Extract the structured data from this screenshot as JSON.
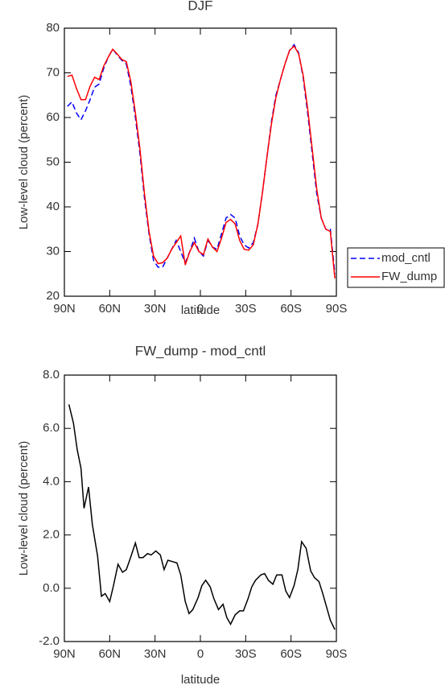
{
  "chart_data": [
    {
      "type": "line",
      "title": "DJF",
      "xlabel": "latitude",
      "ylabel": "Low-level cloud (percent)",
      "x": [
        88,
        85,
        82,
        79,
        76,
        73,
        70,
        67,
        64,
        61,
        58,
        55,
        52,
        49,
        46,
        43,
        40,
        37,
        34,
        31,
        28,
        25,
        22,
        19,
        16,
        13,
        10,
        7,
        4,
        1,
        -2,
        -5,
        -8,
        -11,
        -14,
        -17,
        -20,
        -23,
        -26,
        -29,
        -32,
        -35,
        -38,
        -41,
        -44,
        -47,
        -50,
        -53,
        -56,
        -59,
        -62,
        -65,
        -68,
        -71,
        -74,
        -77,
        -80,
        -83,
        -86,
        -89
      ],
      "series": [
        {
          "name": "mod_cntl",
          "color": "#0000ff",
          "linestyle": "dashed",
          "values": [
            62.5,
            63.5,
            61,
            59.5,
            61.5,
            64,
            66.8,
            67.5,
            71,
            73.5,
            75.3,
            74,
            72.8,
            72,
            67,
            60,
            52,
            42,
            34,
            28,
            26.5,
            26.5,
            28.5,
            30.5,
            32.5,
            30,
            27.5,
            30,
            33,
            30,
            29,
            32.5,
            31,
            30.5,
            34,
            37.5,
            38.3,
            37.5,
            33.5,
            31.5,
            30.8,
            32,
            36,
            43,
            51,
            59,
            65,
            68.5,
            72,
            75,
            76.3,
            74.5,
            69,
            61,
            52,
            43,
            37.5,
            35,
            35,
            25
          ]
        },
        {
          "name": "FW_dump",
          "color": "#ff0000",
          "linestyle": "solid",
          "values": [
            69.2,
            69.5,
            66.5,
            64,
            64,
            67,
            69,
            68.5,
            71.5,
            73.5,
            75.3,
            74.2,
            73,
            72.5,
            68,
            61,
            53,
            43,
            34.5,
            29,
            27.3,
            27.5,
            28.5,
            30.5,
            32,
            33.5,
            27,
            30,
            32,
            30,
            29.3,
            32.8,
            31,
            30,
            33,
            36.5,
            37.2,
            36.2,
            32.5,
            30.5,
            30.3,
            31.5,
            36,
            43,
            51,
            58.5,
            64.5,
            68.5,
            72,
            75,
            76,
            74.3,
            69.5,
            62,
            53,
            44,
            37.5,
            35,
            34.5,
            24
          ]
        }
      ],
      "xlim": [
        90,
        -90
      ],
      "xticks": [
        {
          "value": 90,
          "label": "90N"
        },
        {
          "value": 60,
          "label": "60N"
        },
        {
          "value": 30,
          "label": "30N"
        },
        0,
        {
          "value": -30,
          "label": "30S"
        },
        {
          "value": -60,
          "label": "60S"
        },
        {
          "value": -90,
          "label": "90S"
        }
      ],
      "ylim": [
        20,
        80
      ],
      "yticks": [
        20,
        30,
        40,
        50,
        60,
        70,
        80
      ],
      "legend": "right"
    },
    {
      "type": "line",
      "title": "FW_dump - mod_cntl",
      "xlabel": "latitude",
      "ylabel": "Low-level cloud (percent)",
      "x": [
        87,
        84,
        81.5,
        79,
        77,
        74,
        71.5,
        68,
        65.5,
        63,
        60,
        57.5,
        54.5,
        51.5,
        49,
        46.5,
        43,
        40.5,
        38,
        35,
        32.5,
        29.5,
        26.5,
        24,
        21.5,
        18.5,
        15.5,
        13,
        10,
        7.5,
        5,
        1.5,
        -1,
        -3.5,
        -6.5,
        -9,
        -12,
        -15,
        -17.5,
        -20,
        -23,
        -26,
        -28.5,
        -31.5,
        -34,
        -36.5,
        -40,
        -42.5,
        -45,
        -48,
        -50.5,
        -54,
        -56.5,
        -59,
        -62,
        -64.5,
        -67,
        -70,
        -73,
        -75.5,
        -78.5,
        -81,
        -83.5,
        -86,
        -89
      ],
      "values": [
        6.9,
        6.2,
        5.2,
        4.5,
        3.0,
        3.8,
        2.4,
        1.2,
        -0.3,
        -0.2,
        -0.5,
        0.1,
        0.9,
        0.6,
        0.7,
        1.1,
        1.7,
        1.15,
        1.15,
        1.3,
        1.25,
        1.4,
        1.25,
        0.7,
        1.05,
        1.0,
        0.95,
        0.5,
        -0.5,
        -0.95,
        -0.8,
        -0.35,
        0.1,
        0.3,
        0.05,
        -0.4,
        -0.8,
        -0.6,
        -1.1,
        -1.35,
        -1.0,
        -0.85,
        -0.85,
        -0.4,
        0.05,
        0.3,
        0.5,
        0.55,
        0.3,
        0.15,
        0.5,
        0.5,
        -0.1,
        -0.35,
        0.1,
        0.7,
        1.75,
        1.5,
        0.65,
        0.4,
        0.25,
        -0.2,
        -0.7,
        -1.2,
        -1.55
      ],
      "color": "#000000",
      "xlim": [
        90,
        -90
      ],
      "xticks": [
        {
          "value": 90,
          "label": "90N"
        },
        {
          "value": 60,
          "label": "60N"
        },
        {
          "value": 30,
          "label": "30N"
        },
        0,
        {
          "value": -30,
          "label": "30S"
        },
        {
          "value": -60,
          "label": "60S"
        },
        {
          "value": -90,
          "label": "90S"
        }
      ],
      "ylim": [
        -2,
        8
      ],
      "yticks": [
        {
          "value": -2,
          "label": "-2.0"
        },
        {
          "value": 0,
          "label": "0.0"
        },
        {
          "value": 2,
          "label": "2.0"
        },
        {
          "value": 4,
          "label": "4.0"
        },
        {
          "value": 6,
          "label": "6.0"
        },
        {
          "value": 8,
          "label": "8.0"
        }
      ]
    }
  ]
}
